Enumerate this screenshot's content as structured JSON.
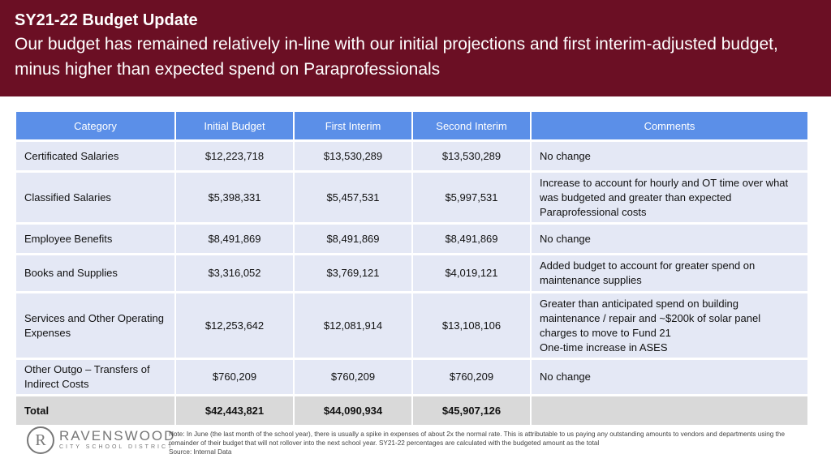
{
  "header": {
    "title": "SY21-22 Budget Update",
    "subtitle": "Our budget has remained relatively in-line with our initial projections and first interim-adjusted budget, minus higher than expected spend on Paraprofessionals"
  },
  "colors": {
    "header_bg": "#6b0f24",
    "table_header_bg": "#5b8fe8",
    "row_bg": "#e4e8f5",
    "total_row_bg": "#d9d9d9"
  },
  "table": {
    "columns": [
      "Category",
      "Initial Budget",
      "First Interim",
      "Second Interim",
      "Comments"
    ],
    "rows": [
      {
        "category": "Certificated Salaries",
        "initial": "$12,223,718",
        "first": "$13,530,289",
        "second": "$13,530,289",
        "comments": "No change"
      },
      {
        "category": "Classified Salaries",
        "initial": "$5,398,331",
        "first": "$5,457,531",
        "second": "$5,997,531",
        "comments": "Increase to account for hourly and OT time over what was budgeted and greater than expected Paraprofessional costs"
      },
      {
        "category": "Employee Benefits",
        "initial": "$8,491,869",
        "first": "$8,491,869",
        "second": "$8,491,869",
        "comments": "No change"
      },
      {
        "category": "Books and Supplies",
        "initial": "$3,316,052",
        "first": "$3,769,121",
        "second": "$4,019,121",
        "comments": "Added budget to account for greater spend on maintenance supplies"
      },
      {
        "category": "Services and Other Operating Expenses",
        "initial": "$12,253,642",
        "first": "$12,081,914",
        "second": "$13,108,106",
        "comments": "Greater than anticipated spend on building maintenance / repair and ~$200k of solar panel charges to move to Fund 21",
        "comments2": "One-time increase in ASES"
      },
      {
        "category": "Other Outgo – Transfers of Indirect Costs",
        "initial": "$760,209",
        "first": "$760,209",
        "second": "$760,209",
        "comments": "No change"
      }
    ],
    "total": {
      "category": "Total",
      "initial": "$42,443,821",
      "first": "$44,090,934",
      "second": "$45,907,126",
      "comments": ""
    }
  },
  "logo": {
    "letter": "R",
    "name": "RAVENSWOOD",
    "tagline": "CITY SCHOOL DISTRICT"
  },
  "note": {
    "text": "Note: In June (the last month of the school year), there is usually a spike in expenses of about 2x the normal rate. This is attributable to us paying any outstanding amounts to vendors and departments using the remainder of their budget that will not rollover into the next school year. SY21-22 percentages are calculated with the budgeted amount as the total",
    "source": "Source: Internal Data"
  }
}
